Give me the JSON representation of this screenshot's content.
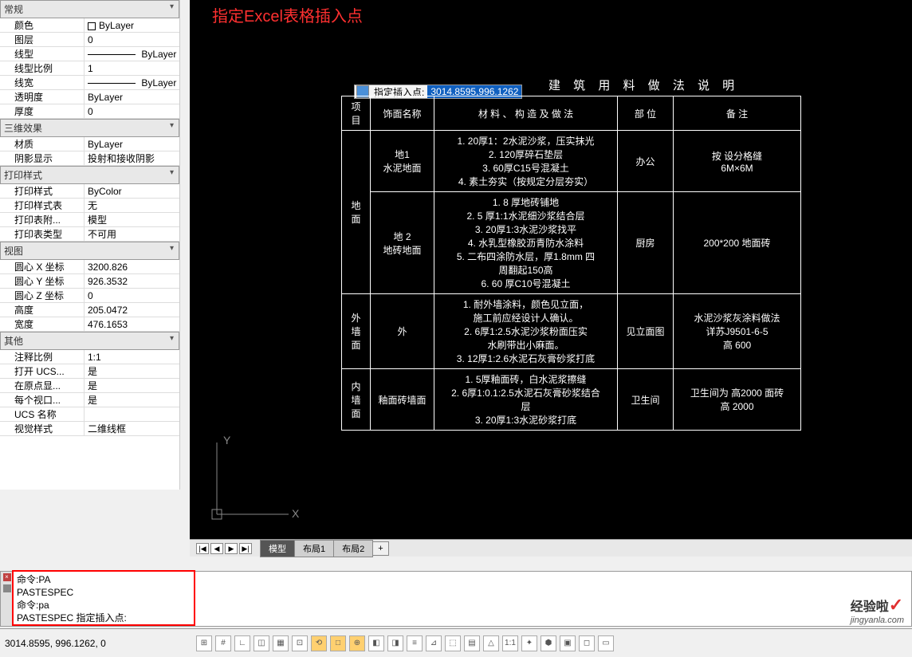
{
  "props": {
    "groups": [
      {
        "title": "常规",
        "rows": [
          {
            "k": "颜色",
            "v": "ByLayer",
            "kind": "color"
          },
          {
            "k": "图层",
            "v": "0"
          },
          {
            "k": "线型",
            "v": "ByLayer",
            "kind": "lt"
          },
          {
            "k": "线型比例",
            "v": "1"
          },
          {
            "k": "线宽",
            "v": "ByLayer",
            "kind": "lt"
          },
          {
            "k": "透明度",
            "v": "ByLayer"
          },
          {
            "k": "厚度",
            "v": "0"
          }
        ]
      },
      {
        "title": "三维效果",
        "rows": [
          {
            "k": "材质",
            "v": "ByLayer"
          },
          {
            "k": "阴影显示",
            "v": "投射和接收阴影"
          }
        ]
      },
      {
        "title": "打印样式",
        "rows": [
          {
            "k": "打印样式",
            "v": "ByColor"
          },
          {
            "k": "打印样式表",
            "v": "无"
          },
          {
            "k": "打印表附...",
            "v": "模型"
          },
          {
            "k": "打印表类型",
            "v": "不可用"
          }
        ]
      },
      {
        "title": "视图",
        "rows": [
          {
            "k": "圆心 X 坐标",
            "v": "3200.826"
          },
          {
            "k": "圆心 Y 坐标",
            "v": "926.3532"
          },
          {
            "k": "圆心 Z 坐标",
            "v": "0"
          },
          {
            "k": "高度",
            "v": "205.0472"
          },
          {
            "k": "宽度",
            "v": "476.1653"
          }
        ]
      },
      {
        "title": "其他",
        "rows": [
          {
            "k": "注释比例",
            "v": "1:1"
          },
          {
            "k": "打开 UCS...",
            "v": "是"
          },
          {
            "k": "在原点显...",
            "v": "是"
          },
          {
            "k": "每个视口...",
            "v": "是"
          },
          {
            "k": "UCS 名称",
            "v": ""
          },
          {
            "k": "视觉样式",
            "v": "二维线框"
          }
        ]
      }
    ]
  },
  "canvas": {
    "callout": "指定Excel表格插入点",
    "tip_label": "指定插入点:",
    "tip_value": "3014.8595,996.1262",
    "table_title": "建 筑 用 料 做 法 说 明",
    "headers": [
      "项目",
      "饰面名称",
      "材 料 、 构 造 及 做 法",
      "部  位",
      "备    注"
    ],
    "rows": [
      {
        "g": "地面",
        "n": "地1\n水泥地面",
        "m": "1. 20厚1：2水泥沙浆，压实抹光\n2. 120厚碎石垫层\n3. 60厚C15号混凝土\n4. 素土夯实（按规定分层夯实）",
        "p": "办公",
        "r": "按    设分格缝\n6M×6M"
      },
      {
        "g": "",
        "n": "地 2\n地砖地面",
        "m": "1. 8 厚地砖铺地\n2. 5 厚1:1水泥细沙浆结合层\n3. 20厚1:3水泥沙浆找平\n4. 水乳型橡胶沥青防水涂料\n5. 二布四涂防水层，厚1.8mm 四\n周翻起150高\n6. 60 厚C10号混凝土",
        "p": "厨房",
        "r": "200*200 地面砖"
      },
      {
        "g": "外墙面",
        "n": "外",
        "m": "1. 耐外墙涂料，颜色见立面，\n施工前应经设计人确认。\n2. 6厚1:2.5水泥沙浆粉面压实\n水刷带出小麻面。\n3. 12厚1:2.6水泥石灰膏砂浆打底",
        "p": "见立面图",
        "r": "水泥沙浆灰涂料做法\n详苏J9501-6-5\n高 600"
      },
      {
        "g": "内墙面",
        "n": "釉面砖墙面",
        "m": "1. 5厚釉面砖，白水泥浆擦缝\n2. 6厚1:0.1:2.5水泥石灰膏砂浆结合\n层\n3. 20厚1:3水泥砂浆打底",
        "p": "卫生间",
        "r": "卫生间为 高2000 面砖\n高 2000"
      }
    ],
    "ucs": {
      "x": "X",
      "y": "Y"
    },
    "tabs": {
      "nav": [
        "|◀",
        "◀",
        "▶",
        "▶|"
      ],
      "active": "模型",
      "others": [
        "布局1",
        "布局2"
      ],
      "plus": "+"
    }
  },
  "cmd": {
    "lines": [
      "命令:PA",
      "PASTESPEC",
      "命令:pa",
      "PASTESPEC 指定插入点:"
    ]
  },
  "status": {
    "coord": "3014.8595, 996.1262, 0",
    "icons": [
      "⊞",
      "#",
      "∟",
      "◫",
      "▦",
      "⊡",
      "⟲",
      "□",
      "⊕",
      "◧",
      "◨",
      "≡",
      "⊿",
      "⬚",
      "▤",
      "△",
      "1:1",
      "✦",
      "⬢",
      "▣",
      "◻",
      "▭"
    ]
  },
  "watermark": {
    "brand": "经验啦",
    "url": "jingyanla.com"
  },
  "colors": {
    "bg": "#000000",
    "fg": "#ffffff",
    "hl": "#ff3030",
    "sel": "#1060c0",
    "panel": "#f0f0f0"
  }
}
